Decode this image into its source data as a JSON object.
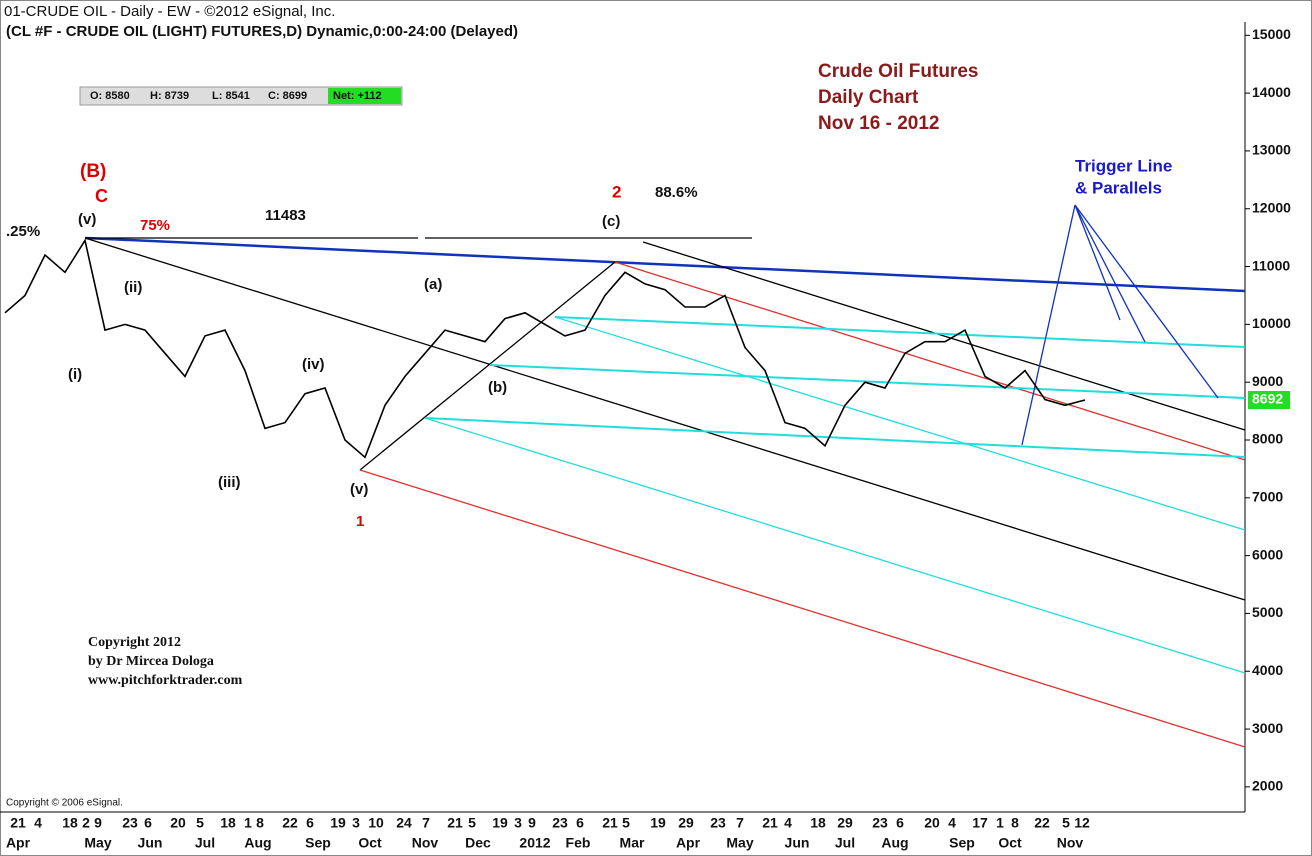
{
  "header": [
    "01-CRUDE OIL - Daily - EW - ©2012 eSignal, Inc.",
    "(CL #F - CRUDE OIL (LIGHT) FUTURES,D) Dynamic,0:00-24:00 (Delayed)"
  ],
  "ohlc": [
    "O: 8580",
    "H: 8739",
    "L: 8541",
    "C: 8699"
  ],
  "net": "Net: +112",
  "title_lines": [
    "Crude Oil Futures",
    "Daily Chart",
    "Nov 16 - 2012"
  ],
  "copyright_lines": [
    "Copyright 2012",
    "by Dr Mircea Dologa",
    "www.pitchforktrader.com"
  ],
  "esignal_note": "Copyright © 2006 eSignal.",
  "chart_data": {
    "type": "line",
    "ylim": [
      1600,
      15230
    ],
    "yticks": [
      2000,
      3000,
      4000,
      5000,
      6000,
      7000,
      8000,
      9000,
      10000,
      11000,
      12000,
      13000,
      14000,
      15000
    ],
    "series": [
      {
        "color": "#000000",
        "values": [
          10200,
          10500,
          11200,
          10900,
          11450,
          9900,
          10000,
          9900,
          9500,
          9100,
          9800,
          9900,
          9200,
          8200,
          8300,
          8800,
          8900,
          8000,
          7700,
          8600,
          9100,
          9500,
          9900,
          9800,
          9700,
          10100,
          10200,
          10000,
          9800,
          9900,
          10500,
          10900,
          10700,
          10600,
          10300,
          10300,
          10500,
          9600,
          9200,
          8300,
          8200,
          7900,
          8600,
          9000,
          8900,
          9500,
          9700,
          9700,
          9900,
          9100,
          8900,
          9200,
          8700,
          8600,
          8692
        ]
      }
    ],
    "day_labels": [
      "21",
      "4",
      "18",
      "2",
      "9",
      "23",
      "6",
      "20",
      "5",
      "18",
      "1",
      "8",
      "22",
      "6",
      "19",
      "3",
      "10",
      "24",
      "7",
      "21",
      "5",
      "19",
      "3",
      "9",
      "23",
      "6",
      "21",
      "5",
      "19",
      "29",
      "23",
      "7",
      "21",
      "4",
      "18",
      "29",
      "23",
      "6",
      "20",
      "4",
      "17",
      "1",
      "8",
      "22",
      "5",
      "12"
    ],
    "month_labels": [
      "Apr",
      "May",
      "Jun",
      "Jul",
      "Aug",
      "Sep",
      "Oct",
      "Nov",
      "Dec",
      "2012",
      "Feb",
      "Mar",
      "Apr",
      "May",
      "Jun",
      "Jul",
      "Aug",
      "Sep",
      "Oct",
      "Nov"
    ],
    "annotations": {
      "wave_B": "(B)",
      "wave_C": "C",
      "pct_25": ".25%",
      "top_v": "(v)",
      "pct_75": "75%",
      "level": "11483",
      "i": "(i)",
      "ii": "(ii)",
      "iii": "(iii)",
      "iv": "(iv)",
      "low_v": "(v)",
      "one": "1",
      "a": "(a)",
      "b": "(b)",
      "c": "(c)",
      "two": "2",
      "pct_886": "88.6%",
      "trigger_1": "Trigger Line",
      "trigger_2": "& Parallels"
    }
  }
}
